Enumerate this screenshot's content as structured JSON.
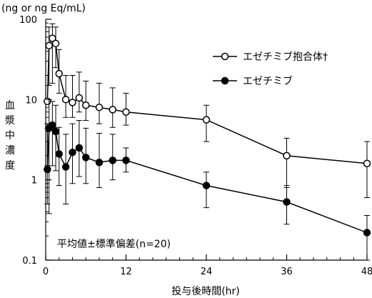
{
  "chart_data": {
    "type": "line",
    "y_unit_label": "(ng or ng Eq/mL)",
    "xlabel": "投与後時間(hr)",
    "ylabel": "血漿中濃度",
    "y_scale": "log",
    "ylim": [
      0.1,
      100
    ],
    "xlim": [
      0,
      48
    ],
    "x_ticks": [
      0,
      12,
      24,
      36,
      48
    ],
    "x_tick_labels": [
      "0",
      "12",
      "24",
      "36",
      "48"
    ],
    "y_ticks": [
      0.1,
      1,
      10,
      100
    ],
    "y_tick_labels": [
      "0.1",
      "1",
      "10",
      "100"
    ],
    "annotation": "平均値±標準偏差(n=20)",
    "legend_position": "top-right",
    "grid": false,
    "series": [
      {
        "name": "エゼチミブ抱合体†",
        "marker": "open-circle",
        "x": [
          0.25,
          0.5,
          1,
          1.5,
          2,
          3,
          4,
          5,
          6,
          8,
          10,
          12,
          24,
          36,
          48
        ],
        "y": [
          9.5,
          47,
          58,
          50,
          21,
          10,
          9.2,
          10.5,
          8.5,
          8,
          7.5,
          7,
          5.6,
          2,
          1.6
        ],
        "err_low": [
          1.5,
          15,
          16,
          25,
          12,
          6,
          6,
          7,
          5.5,
          5,
          4.5,
          4.8,
          3.0,
          0.8,
          0.6
        ],
        "err_high": [
          5,
          80,
          88,
          80,
          42,
          20,
          20,
          22,
          17,
          16,
          14,
          12,
          8.5,
          3.3,
          3.0
        ]
      },
      {
        "name": "エゼチミブ",
        "marker": "filled-circle",
        "x": [
          0.25,
          0.5,
          1,
          1.5,
          2,
          3,
          4,
          5,
          6,
          8,
          10,
          12,
          24,
          36,
          48
        ],
        "y": [
          1.35,
          4.4,
          4.8,
          4.0,
          2.1,
          1.45,
          2.2,
          2.5,
          1.9,
          1.65,
          1.75,
          1.75,
          0.85,
          0.53,
          0.22
        ],
        "err_low": [
          0.5,
          0.38,
          1.5,
          1.3,
          0.85,
          0.5,
          0.9,
          1.1,
          0.9,
          0.8,
          1.0,
          1.25,
          0.45,
          0.28,
          0.1
        ],
        "err_high": [
          4.4,
          10,
          9.5,
          8.5,
          4.5,
          3.7,
          5.0,
          5.5,
          4.4,
          3.8,
          3.7,
          2.5,
          1.25,
          0.85,
          0.36
        ]
      }
    ]
  }
}
